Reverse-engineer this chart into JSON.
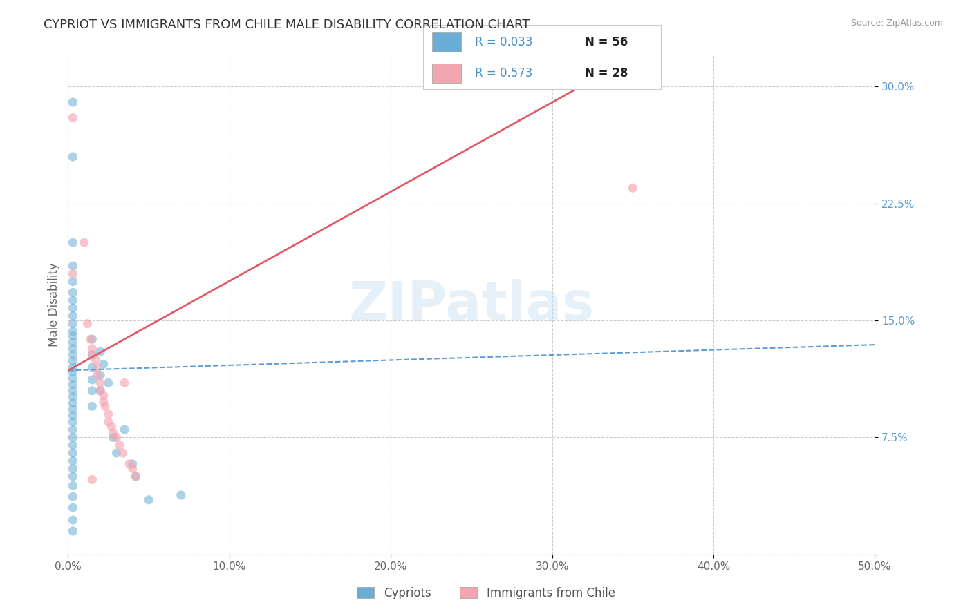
{
  "title": "CYPRIOT VS IMMIGRANTS FROM CHILE MALE DISABILITY CORRELATION CHART",
  "source": "Source: ZipAtlas.com",
  "ylabel": "Male Disability",
  "watermark": "ZIPatlas",
  "legend_blue_r": "R = 0.033",
  "legend_blue_n": "N = 56",
  "legend_pink_r": "R = 0.573",
  "legend_pink_n": "N = 28",
  "legend_label_blue": "Cypriots",
  "legend_label_pink": "Immigrants from Chile",
  "xlim": [
    0.0,
    0.5
  ],
  "ylim": [
    0.0,
    0.32
  ],
  "xticks": [
    0.0,
    0.1,
    0.2,
    0.3,
    0.4,
    0.5
  ],
  "xtick_labels": [
    "0.0%",
    "10.0%",
    "20.0%",
    "30.0%",
    "40.0%",
    "50.0%"
  ],
  "yticks": [
    0.0,
    0.075,
    0.15,
    0.225,
    0.3
  ],
  "ytick_labels": [
    "",
    "7.5%",
    "15.0%",
    "22.5%",
    "30.0%"
  ],
  "blue_color": "#6aaed6",
  "pink_color": "#f4a6b0",
  "blue_line_color": "#5b9bd5",
  "pink_line_color": "#e05a6a",
  "blue_scatter": [
    [
      0.003,
      0.29
    ],
    [
      0.003,
      0.255
    ],
    [
      0.003,
      0.2
    ],
    [
      0.003,
      0.185
    ],
    [
      0.003,
      0.175
    ],
    [
      0.003,
      0.168
    ],
    [
      0.003,
      0.163
    ],
    [
      0.003,
      0.158
    ],
    [
      0.003,
      0.153
    ],
    [
      0.003,
      0.148
    ],
    [
      0.003,
      0.143
    ],
    [
      0.003,
      0.14
    ],
    [
      0.003,
      0.136
    ],
    [
      0.003,
      0.132
    ],
    [
      0.003,
      0.128
    ],
    [
      0.003,
      0.124
    ],
    [
      0.003,
      0.12
    ],
    [
      0.003,
      0.117
    ],
    [
      0.003,
      0.113
    ],
    [
      0.003,
      0.109
    ],
    [
      0.003,
      0.105
    ],
    [
      0.003,
      0.101
    ],
    [
      0.003,
      0.097
    ],
    [
      0.003,
      0.093
    ],
    [
      0.003,
      0.089
    ],
    [
      0.003,
      0.085
    ],
    [
      0.003,
      0.08
    ],
    [
      0.003,
      0.075
    ],
    [
      0.003,
      0.07
    ],
    [
      0.003,
      0.065
    ],
    [
      0.003,
      0.06
    ],
    [
      0.003,
      0.055
    ],
    [
      0.003,
      0.05
    ],
    [
      0.003,
      0.044
    ],
    [
      0.003,
      0.037
    ],
    [
      0.003,
      0.03
    ],
    [
      0.003,
      0.022
    ],
    [
      0.003,
      0.015
    ],
    [
      0.015,
      0.138
    ],
    [
      0.015,
      0.128
    ],
    [
      0.015,
      0.12
    ],
    [
      0.015,
      0.112
    ],
    [
      0.015,
      0.105
    ],
    [
      0.015,
      0.095
    ],
    [
      0.02,
      0.13
    ],
    [
      0.02,
      0.115
    ],
    [
      0.02,
      0.105
    ],
    [
      0.022,
      0.122
    ],
    [
      0.025,
      0.11
    ],
    [
      0.028,
      0.075
    ],
    [
      0.03,
      0.065
    ],
    [
      0.035,
      0.08
    ],
    [
      0.04,
      0.058
    ],
    [
      0.042,
      0.05
    ],
    [
      0.05,
      0.035
    ],
    [
      0.07,
      0.038
    ]
  ],
  "pink_scatter": [
    [
      0.003,
      0.28
    ],
    [
      0.003,
      0.18
    ],
    [
      0.01,
      0.2
    ],
    [
      0.012,
      0.148
    ],
    [
      0.014,
      0.138
    ],
    [
      0.015,
      0.132
    ],
    [
      0.015,
      0.128
    ],
    [
      0.017,
      0.125
    ],
    [
      0.018,
      0.12
    ],
    [
      0.018,
      0.115
    ],
    [
      0.02,
      0.11
    ],
    [
      0.02,
      0.105
    ],
    [
      0.022,
      0.102
    ],
    [
      0.022,
      0.098
    ],
    [
      0.023,
      0.095
    ],
    [
      0.025,
      0.09
    ],
    [
      0.025,
      0.085
    ],
    [
      0.027,
      0.082
    ],
    [
      0.028,
      0.078
    ],
    [
      0.03,
      0.075
    ],
    [
      0.032,
      0.07
    ],
    [
      0.034,
      0.065
    ],
    [
      0.035,
      0.11
    ],
    [
      0.038,
      0.058
    ],
    [
      0.04,
      0.055
    ],
    [
      0.042,
      0.05
    ],
    [
      0.35,
      0.235
    ],
    [
      0.015,
      0.048
    ]
  ],
  "blue_line_slope": 0.033,
  "blue_line_intercept": 0.118,
  "pink_line_slope": 0.573,
  "pink_line_intercept": 0.118
}
